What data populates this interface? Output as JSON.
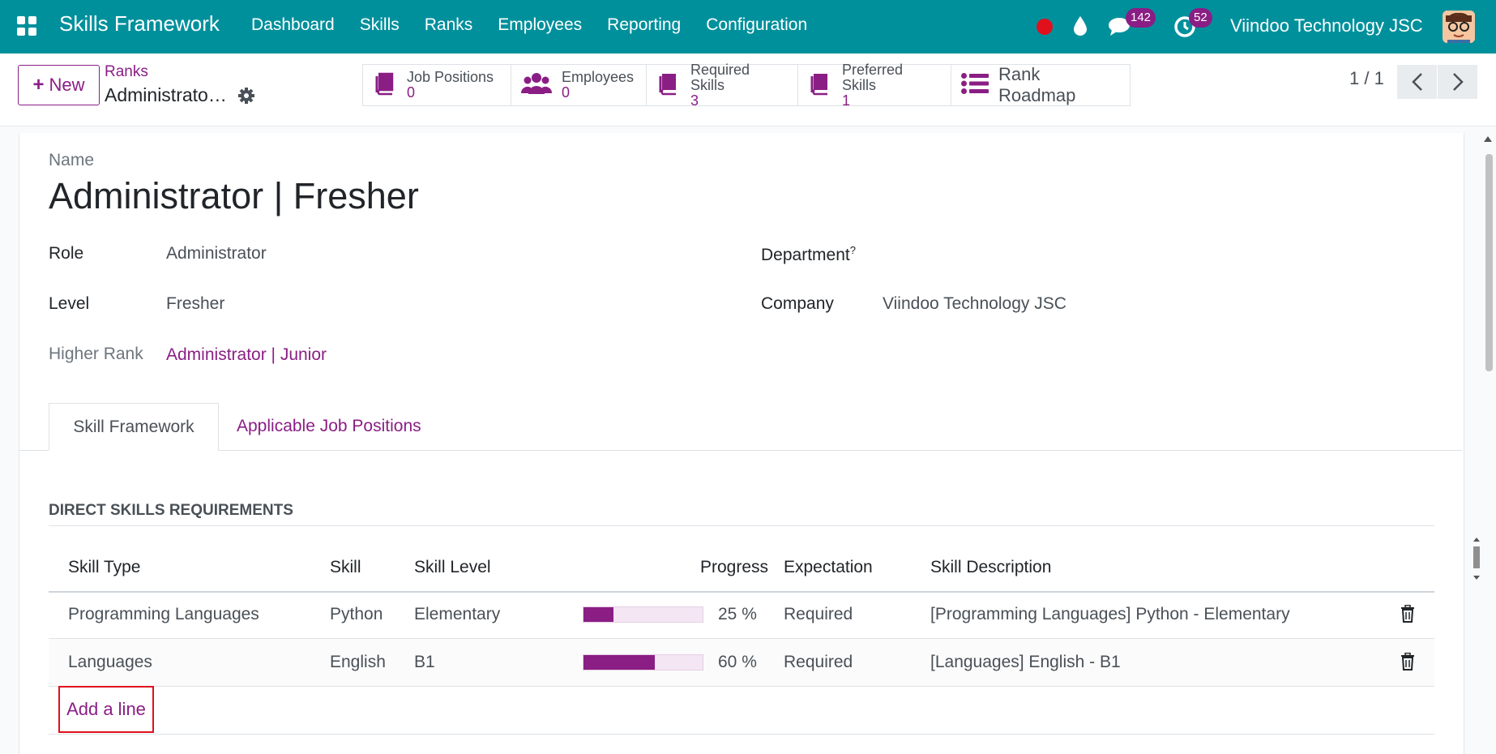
{
  "nav": {
    "app_title": "Skills Framework",
    "menu": [
      "Dashboard",
      "Skills",
      "Ranks",
      "Employees",
      "Reporting",
      "Configuration"
    ],
    "messages_count": "142",
    "activities_count": "52",
    "company": "Viindoo Technology JSC",
    "accent": "#00909c"
  },
  "control_panel": {
    "new_label": "New",
    "breadcrumb_parent": "Ranks",
    "breadcrumb_current": "Administrator | Fresher",
    "smart_buttons": [
      {
        "label": "Job Positions",
        "value": "0",
        "icon": "book-icon"
      },
      {
        "label": "Employees",
        "value": "0",
        "icon": "users-icon"
      },
      {
        "label": "Required Skills",
        "value": "3",
        "icon": "book-icon"
      },
      {
        "label": "Preferred Skills",
        "value": "1",
        "icon": "book-icon"
      },
      {
        "label": "Rank Roadmap",
        "icon": "list-icon"
      }
    ],
    "pager": "1 / 1"
  },
  "form": {
    "name_label": "Name",
    "name": "Administrator | Fresher",
    "role_label": "Role",
    "role": "Administrator",
    "level_label": "Level",
    "level": "Fresher",
    "higher_rank_label": "Higher Rank",
    "higher_rank": "Administrator | Junior",
    "department_label": "Department",
    "department_help": "?",
    "company_label": "Company",
    "company": "Viindoo Technology JSC"
  },
  "tabs": [
    "Skill Framework",
    "Applicable Job Positions"
  ],
  "skills_section": {
    "heading": "DIRECT SKILLS REQUIREMENTS",
    "columns": [
      "Skill Type",
      "Skill",
      "Skill Level",
      "Progress",
      "Expectation",
      "Skill Description"
    ],
    "rows": [
      {
        "skill_type": "Programming Languages",
        "skill": "Python",
        "level": "Elementary",
        "progress": 25,
        "progress_text": "25 %",
        "expectation": "Required",
        "description": "[Programming Languages] Python - Elementary"
      },
      {
        "skill_type": "Languages",
        "skill": "English",
        "level": "B1",
        "progress": 60,
        "progress_text": "60 %",
        "expectation": "Required",
        "description": "[Languages] English - B1"
      }
    ],
    "add_line": "Add a line"
  }
}
